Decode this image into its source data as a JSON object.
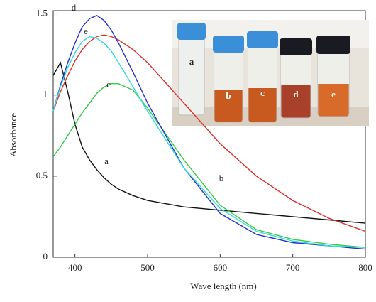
{
  "chart_data": {
    "type": "line",
    "x_label": "Wave length (nm)",
    "y_label": "Absorbance",
    "x": [
      370,
      380,
      390,
      400,
      410,
      420,
      430,
      440,
      450,
      460,
      480,
      500,
      550,
      600,
      650,
      700,
      750,
      800
    ],
    "series": [
      {
        "name": "a",
        "color": "#111111",
        "values": [
          1.12,
          1.2,
          1.02,
          0.82,
          0.68,
          0.6,
          0.54,
          0.49,
          0.45,
          0.42,
          0.38,
          0.35,
          0.31,
          0.29,
          0.27,
          0.25,
          0.23,
          0.21
        ]
      },
      {
        "name": "b",
        "color": "#e0302a",
        "values": [
          0.9,
          1.02,
          1.12,
          1.21,
          1.28,
          1.33,
          1.36,
          1.37,
          1.36,
          1.34,
          1.28,
          1.2,
          0.95,
          0.7,
          0.5,
          0.35,
          0.24,
          0.16
        ]
      },
      {
        "name": "c",
        "color": "#33cc44",
        "values": [
          0.62,
          0.68,
          0.75,
          0.82,
          0.89,
          0.95,
          1.01,
          1.05,
          1.07,
          1.07,
          1.03,
          0.92,
          0.6,
          0.32,
          0.17,
          0.11,
          0.08,
          0.06
        ]
      },
      {
        "name": "d",
        "color": "#2233cc",
        "values": [
          0.9,
          1.06,
          1.2,
          1.32,
          1.42,
          1.47,
          1.49,
          1.46,
          1.4,
          1.32,
          1.14,
          0.95,
          0.55,
          0.27,
          0.14,
          0.09,
          0.07,
          0.05
        ]
      },
      {
        "name": "e",
        "color": "#33dddd",
        "values": [
          0.9,
          1.05,
          1.17,
          1.26,
          1.33,
          1.36,
          1.35,
          1.32,
          1.27,
          1.2,
          1.05,
          0.9,
          0.55,
          0.3,
          0.16,
          0.1,
          0.07,
          0.06
        ]
      }
    ],
    "xlim": [
      370,
      800
    ],
    "xticks": [
      400,
      500,
      600,
      700,
      800
    ],
    "ylim": [
      0,
      1.52
    ],
    "yticks": [
      0,
      0.5,
      1,
      1.5
    ],
    "inset_labels": [
      "a",
      "b",
      "c",
      "d",
      "e"
    ]
  }
}
